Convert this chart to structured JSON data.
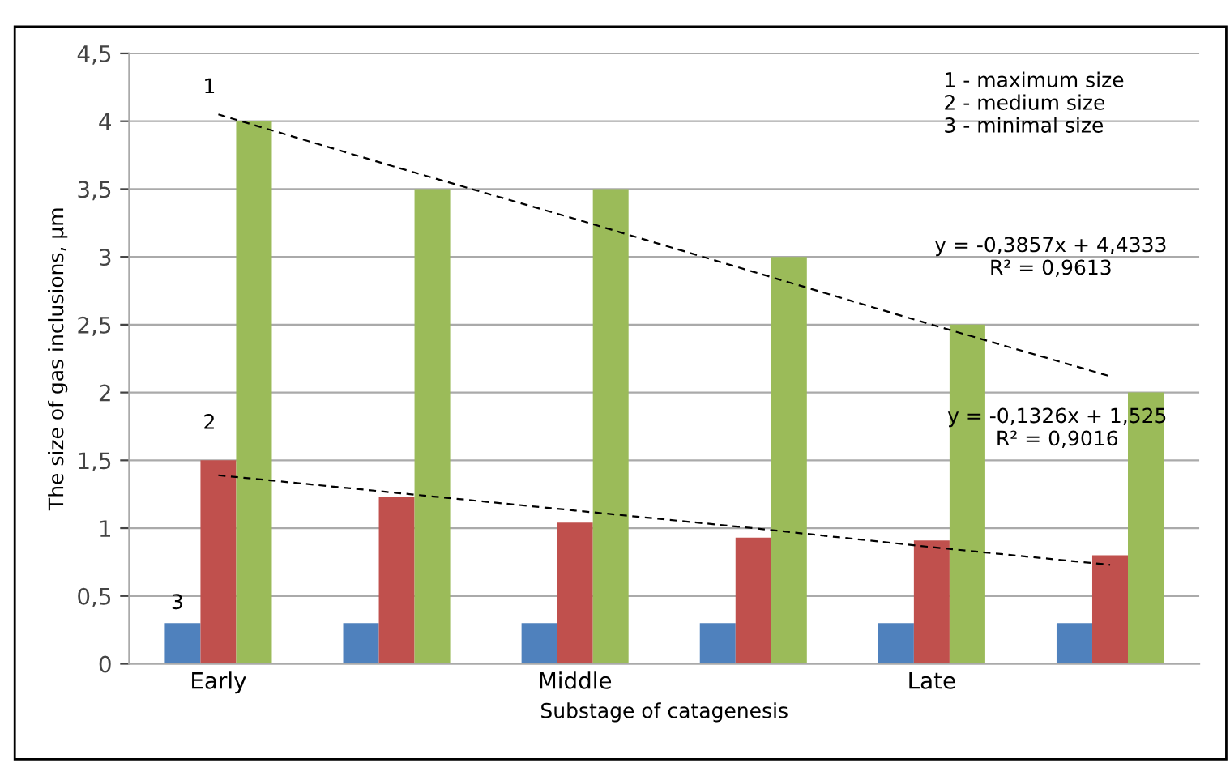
{
  "chart_data": {
    "type": "bar",
    "xlabel": "Substage of catagenesis",
    "ylabel": "The size of gas inclusions, µm",
    "categories": [
      "Early",
      null,
      "Middle",
      null,
      "Late",
      null
    ],
    "series": [
      {
        "color": "#4f81bd",
        "values": [
          0.3,
          0.3,
          0.3,
          0.3,
          0.3,
          0.3
        ]
      },
      {
        "color": "#c0504d",
        "values": [
          1.5,
          1.23,
          1.04,
          0.93,
          0.91,
          0.8
        ]
      },
      {
        "color": "#9bbb59",
        "values": [
          4,
          3.5,
          3.5,
          3,
          2.5,
          2
        ]
      },
      {
        "type": "line",
        "color": "#000000",
        "line_style": "dashed",
        "values": [
          4.05,
          3.66,
          3.28,
          2.89,
          2.5,
          2.12
        ]
      },
      {
        "type": "line",
        "color": "#000000",
        "line_style": "dashed",
        "values": [
          1.39,
          1.26,
          1.13,
          1.0,
          0.86,
          0.73
        ]
      }
    ],
    "ylim": [
      0,
      4.5
    ],
    "yticks": [
      0,
      {
        "value": 0.5,
        "label": "0,5"
      },
      1,
      {
        "value": 1.5,
        "label": "1,5"
      },
      2,
      {
        "value": 2.5,
        "label": "2,5"
      },
      3,
      {
        "value": 3.5,
        "label": "3,5"
      },
      4,
      {
        "value": 4.5,
        "label": "4,5"
      }
    ],
    "grid": "y",
    "legend": false,
    "annotations": [
      "1",
      "2",
      "3",
      "1 - maximum size\n2 - medium size\n3 - minimal size",
      "y = -0,3857x + 4,4333\nR² = 0,9613",
      "y = -0,1326x + 1,525\nR² = 0,9016"
    ]
  }
}
